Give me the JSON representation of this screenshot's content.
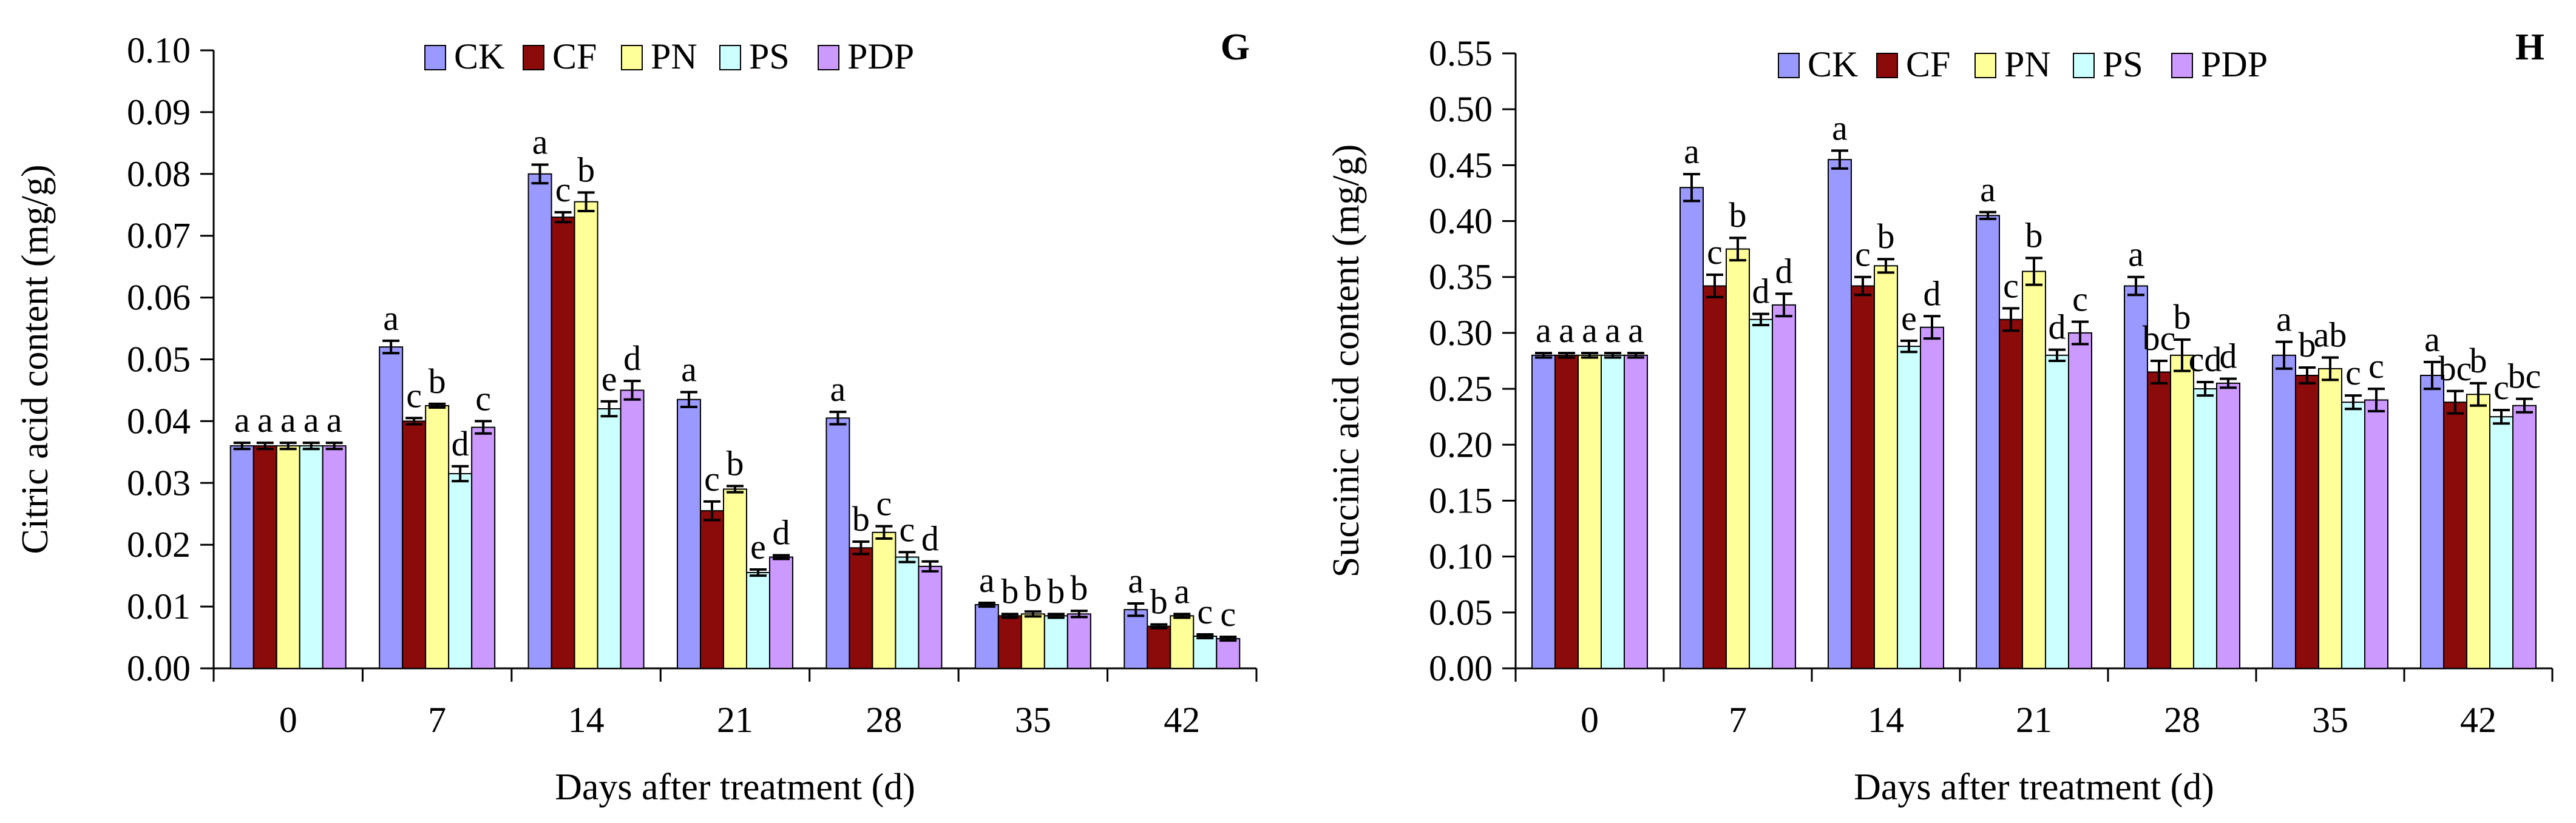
{
  "legend": [
    "CK",
    "CF",
    "PN",
    "PS",
    "PDP"
  ],
  "colors": {
    "CK": "#9999ff",
    "CF": "#8b0a0a",
    "PN": "#ffff99",
    "PS": "#ccffff",
    "PDP": "#cc99ff"
  },
  "chart_data": [
    {
      "type": "bar",
      "panel": "G",
      "title": "",
      "xlabel": "Days after treatment (d)",
      "ylabel": "Citric acid content (mg/g)",
      "ylim": [
        0,
        0.1
      ],
      "ytick_step": 0.01,
      "yticks": [
        "0.00",
        "0.01",
        "0.02",
        "0.03",
        "0.04",
        "0.05",
        "0.06",
        "0.07",
        "0.08",
        "0.09",
        "0.10"
      ],
      "categories": [
        "0",
        "7",
        "14",
        "21",
        "28",
        "35",
        "42"
      ],
      "series": [
        {
          "name": "CK",
          "values": [
            0.036,
            0.052,
            0.08,
            0.0435,
            0.0405,
            0.0103,
            0.0095
          ],
          "errors": [
            0.0005,
            0.001,
            0.0015,
            0.0012,
            0.001,
            0.0003,
            0.001
          ],
          "labels": [
            "a",
            "a",
            "a",
            "a",
            "a",
            "a",
            "a"
          ]
        },
        {
          "name": "CF",
          "values": [
            0.036,
            0.04,
            0.073,
            0.0255,
            0.0195,
            0.0085,
            0.0068
          ],
          "errors": [
            0.0005,
            0.0005,
            0.0008,
            0.0015,
            0.001,
            0.0003,
            0.0003
          ],
          "labels": [
            "a",
            "c",
            "c",
            "c",
            "b",
            "b",
            "b"
          ]
        },
        {
          "name": "PN",
          "values": [
            0.036,
            0.0425,
            0.0755,
            0.029,
            0.022,
            0.0088,
            0.0085
          ],
          "errors": [
            0.0005,
            0.0003,
            0.0015,
            0.0005,
            0.001,
            0.0004,
            0.0003
          ],
          "labels": [
            "a",
            "b",
            "b",
            "b",
            "c",
            "b",
            "a"
          ]
        },
        {
          "name": "PS",
          "values": [
            0.036,
            0.0315,
            0.042,
            0.0155,
            0.018,
            0.0085,
            0.0052
          ],
          "errors": [
            0.0005,
            0.0012,
            0.0012,
            0.0005,
            0.0008,
            0.0003,
            0.0003
          ],
          "labels": [
            "a",
            "d",
            "e",
            "e",
            "c",
            "b",
            "c"
          ]
        },
        {
          "name": "PDP",
          "values": [
            0.036,
            0.039,
            0.045,
            0.018,
            0.0165,
            0.0088,
            0.0048
          ],
          "errors": [
            0.0005,
            0.001,
            0.0015,
            0.0003,
            0.0008,
            0.0005,
            0.0003
          ],
          "labels": [
            "a",
            "c",
            "d",
            "d",
            "d",
            "b",
            "c"
          ]
        }
      ]
    },
    {
      "type": "bar",
      "panel": "H",
      "title": "",
      "xlabel": "Days after treatment (d)",
      "ylabel": "Succinic acid content (mg/g)",
      "ylim": [
        0,
        0.55
      ],
      "ytick_step": 0.05,
      "yticks": [
        "0.00",
        "0.05",
        "0.10",
        "0.15",
        "0.20",
        "0.25",
        "0.30",
        "0.35",
        "0.40",
        "0.45",
        "0.50",
        "0.55"
      ],
      "categories": [
        "0",
        "7",
        "14",
        "21",
        "28",
        "35",
        "42"
      ],
      "series": [
        {
          "name": "CK",
          "values": [
            0.28,
            0.43,
            0.455,
            0.405,
            0.342,
            0.28,
            0.262
          ],
          "errors": [
            0.002,
            0.012,
            0.008,
            0.003,
            0.008,
            0.012,
            0.012
          ],
          "labels": [
            "a",
            "a",
            "a",
            "a",
            "a",
            "a",
            "a"
          ]
        },
        {
          "name": "CF",
          "values": [
            0.28,
            0.342,
            0.342,
            0.312,
            0.265,
            0.262,
            0.238
          ],
          "errors": [
            0.002,
            0.01,
            0.008,
            0.01,
            0.01,
            0.007,
            0.01
          ],
          "labels": [
            "a",
            "c",
            "c",
            "c",
            "bc",
            "b",
            "bc"
          ]
        },
        {
          "name": "PN",
          "values": [
            0.28,
            0.375,
            0.36,
            0.355,
            0.28,
            0.268,
            0.245
          ],
          "errors": [
            0.002,
            0.01,
            0.006,
            0.012,
            0.014,
            0.01,
            0.01
          ],
          "labels": [
            "a",
            "b",
            "b",
            "b",
            "b",
            "ab",
            "b"
          ]
        },
        {
          "name": "PS",
          "values": [
            0.28,
            0.312,
            0.288,
            0.28,
            0.25,
            0.238,
            0.225
          ],
          "errors": [
            0.002,
            0.005,
            0.005,
            0.005,
            0.006,
            0.006,
            0.006
          ],
          "labels": [
            "a",
            "d",
            "e",
            "d",
            "cd",
            "c",
            "c"
          ]
        },
        {
          "name": "PDP",
          "values": [
            0.28,
            0.325,
            0.305,
            0.3,
            0.255,
            0.24,
            0.235
          ],
          "errors": [
            0.002,
            0.01,
            0.01,
            0.01,
            0.004,
            0.01,
            0.006
          ],
          "labels": [
            "a",
            "d",
            "d",
            "c",
            "d",
            "c",
            "bc"
          ]
        }
      ]
    }
  ]
}
